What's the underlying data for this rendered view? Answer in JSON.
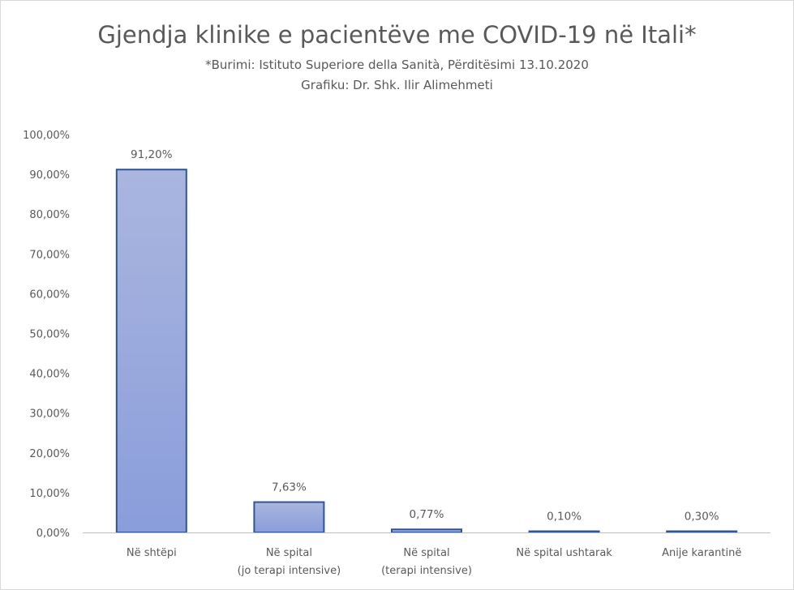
{
  "chart_data": {
    "type": "bar",
    "title": "Gjendja klinike e pacientëve me COVID-19 në Itali*",
    "subtitle": [
      "*Burimi: Istituto Superiore della Sanità, Përditësimi 13.10.2020",
      "Grafiku: Dr. Shk. Ilir Alimehmeti"
    ],
    "categories": [
      [
        "Në shtëpi"
      ],
      [
        "Në spital",
        "(jo terapi intensive)"
      ],
      [
        "Në spital",
        "(terapi intensive)"
      ],
      [
        "Në spital ushtarak"
      ],
      [
        "Anije karantinë"
      ]
    ],
    "values": [
      91.2,
      7.63,
      0.77,
      0.1,
      0.3
    ],
    "data_labels": [
      "91,20%",
      "7,63%",
      "0,77%",
      "0,10%",
      "0,30%"
    ],
    "ylim": [
      0,
      100
    ],
    "yticks": [
      0,
      10,
      20,
      30,
      40,
      50,
      60,
      70,
      80,
      90,
      100
    ],
    "ytick_labels": [
      "0,00%",
      "10,00%",
      "20,00%",
      "30,00%",
      "40,00%",
      "50,00%",
      "60,00%",
      "70,00%",
      "80,00%",
      "90,00%",
      "100,00%"
    ],
    "grid": false,
    "legend": "none",
    "colors": {
      "bar_top": "#aab6df",
      "bar_bottom": "#8a9ddb",
      "bar_border": "#2f5597",
      "axis": "#bfbfbf",
      "text": "#595959"
    }
  }
}
